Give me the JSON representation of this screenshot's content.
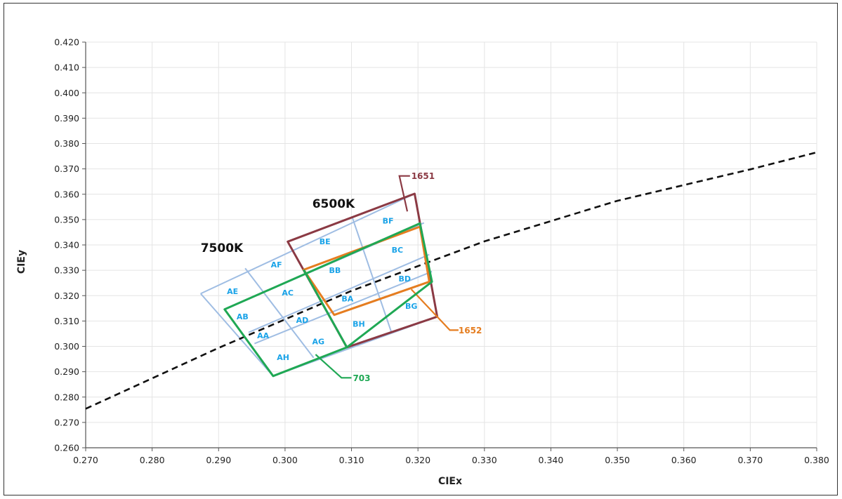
{
  "chart_data": {
    "type": "scatter",
    "title": "",
    "xlabel": "CIEx",
    "ylabel": "CIEy",
    "xlim": [
      0.27,
      0.38
    ],
    "ylim": [
      0.26,
      0.42
    ],
    "grid": true,
    "x_ticks": [
      "0.270",
      "0.280",
      "0.290",
      "0.300",
      "0.310",
      "0.320",
      "0.330",
      "0.340",
      "0.350",
      "0.360",
      "0.370",
      "0.380"
    ],
    "y_ticks": [
      "0.260",
      "0.270",
      "0.280",
      "0.290",
      "0.300",
      "0.310",
      "0.320",
      "0.330",
      "0.340",
      "0.350",
      "0.360",
      "0.370",
      "0.380",
      "0.390",
      "0.400",
      "0.410",
      "0.420"
    ],
    "blackbody_locus": {
      "style": "dashed",
      "color": "#111111",
      "points": [
        [
          0.27,
          0.2754
        ],
        [
          0.29,
          0.2994
        ],
        [
          0.31,
          0.3219
        ],
        [
          0.33,
          0.3414
        ],
        [
          0.35,
          0.3574
        ],
        [
          0.37,
          0.3698
        ],
        [
          0.38,
          0.3765
        ]
      ]
    },
    "annotations": [
      {
        "text": "7500K",
        "x": 0.2873,
        "y": 0.3373
      },
      {
        "text": "6500K",
        "x": 0.3041,
        "y": 0.3547
      }
    ],
    "grid_lines_color": "#9fbde3",
    "grid_lines": [
      [
        [
          0.2873,
          0.3208
        ],
        [
          0.2982,
          0.2883
        ]
      ],
      [
        [
          0.294,
          0.3308
        ],
        [
          0.3043,
          0.2955
        ]
      ],
      [
        [
          0.3004,
          0.3413
        ],
        [
          0.3093,
          0.2996
        ]
      ],
      [
        [
          0.3101,
          0.351
        ],
        [
          0.316,
          0.3056
        ]
      ],
      [
        [
          0.3195,
          0.3602
        ],
        [
          0.3229,
          0.3117
        ]
      ],
      [
        [
          0.2873,
          0.3208
        ],
        [
          0.3195,
          0.3602
        ]
      ],
      [
        [
          0.2909,
          0.3146
        ],
        [
          0.3209,
          0.3487
        ]
      ],
      [
        [
          0.2945,
          0.3055
        ],
        [
          0.3217,
          0.3362
        ]
      ],
      [
        [
          0.2954,
          0.3011
        ],
        [
          0.3221,
          0.3295
        ]
      ],
      [
        [
          0.2982,
          0.2883
        ],
        [
          0.3229,
          0.3117
        ]
      ]
    ],
    "bins": [
      {
        "label": "AE",
        "x": 0.2921,
        "y": 0.3217
      },
      {
        "label": "AF",
        "x": 0.2987,
        "y": 0.3322
      },
      {
        "label": "AB",
        "x": 0.2936,
        "y": 0.3117
      },
      {
        "label": "AC",
        "x": 0.3004,
        "y": 0.3212
      },
      {
        "label": "AA",
        "x": 0.2967,
        "y": 0.3043
      },
      {
        "label": "AD",
        "x": 0.3026,
        "y": 0.3104
      },
      {
        "label": "AH",
        "x": 0.2997,
        "y": 0.2957
      },
      {
        "label": "AG",
        "x": 0.305,
        "y": 0.3019
      },
      {
        "label": "BE",
        "x": 0.306,
        "y": 0.3414
      },
      {
        "label": "BF",
        "x": 0.3155,
        "y": 0.3495
      },
      {
        "label": "BB",
        "x": 0.3075,
        "y": 0.33
      },
      {
        "label": "BC",
        "x": 0.3169,
        "y": 0.3381
      },
      {
        "label": "BA",
        "x": 0.3094,
        "y": 0.3188
      },
      {
        "label": "BD",
        "x": 0.318,
        "y": 0.3267
      },
      {
        "label": "BH",
        "x": 0.3111,
        "y": 0.3089
      },
      {
        "label": "BG",
        "x": 0.319,
        "y": 0.3159
      }
    ],
    "regions": [
      {
        "name": "1651",
        "color": "#8b3a44",
        "polygon": [
          [
            0.3004,
            0.3413
          ],
          [
            0.3195,
            0.3602
          ],
          [
            0.3229,
            0.3117
          ],
          [
            0.3093,
            0.2996
          ]
        ],
        "callout": [
          [
            0.3184,
            0.3532
          ],
          [
            0.3172,
            0.3672
          ],
          [
            0.3188,
            0.3672
          ]
        ],
        "label_pos": [
          0.319,
          0.3672
        ]
      },
      {
        "name": "1652",
        "color": "#e57d20",
        "polygon": [
          [
            0.3028,
            0.3302
          ],
          [
            0.3203,
            0.3472
          ],
          [
            0.3217,
            0.3255
          ],
          [
            0.3074,
            0.3124
          ]
        ],
        "callout": [
          [
            0.319,
            0.3225
          ],
          [
            0.3248,
            0.3064
          ],
          [
            0.3261,
            0.3064
          ]
        ],
        "label_pos": [
          0.3261,
          0.3064
        ]
      },
      {
        "name": "703",
        "color": "#1fa854",
        "polygon": [
          [
            0.2909,
            0.3146
          ],
          [
            0.3203,
            0.3485
          ],
          [
            0.3221,
            0.3255
          ],
          [
            0.3093,
            0.2996
          ],
          [
            0.2982,
            0.2883
          ]
        ],
        "inner_line": [
          [
            0.3028,
            0.3302
          ],
          [
            0.3093,
            0.2996
          ]
        ],
        "callout": [
          [
            0.3046,
            0.2968
          ],
          [
            0.3085,
            0.2876
          ],
          [
            0.31,
            0.2876
          ]
        ],
        "label_pos": [
          0.3102,
          0.2876
        ]
      }
    ]
  }
}
